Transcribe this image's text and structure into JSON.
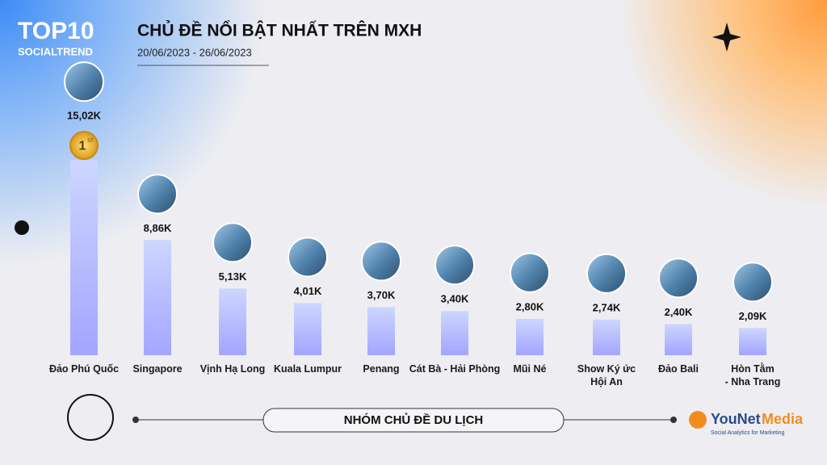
{
  "header": {
    "logo_top": "TOP10",
    "logo_bottom": "SOCIALTREND"
  },
  "rank_badge": {
    "number": "1",
    "suffix": "ST"
  },
  "footer": {
    "group": "NHÓM CHỦ ĐỀ DU LỊCH",
    "brand_a": "YouNet",
    "brand_b": "Media",
    "tagline": "Social Analytics for Marketing"
  },
  "chart_data": {
    "type": "bar",
    "title": "CHỦ ĐỀ NỔI BẬT NHẤT TRÊN MXH",
    "subtitle": "20/06/2023 - 26/06/2023",
    "categories": [
      "Đảo Phú Quốc",
      "Singapore",
      "Vịnh Hạ Long",
      "Kuala Lumpur",
      "Penang",
      "Cát Bà - Hải Phòng",
      "Mũi Né",
      "Show Ký ức\nHội An",
      "Đảo Bali",
      "Hòn Tằm\n- Nha Trang"
    ],
    "values": [
      15.02,
      8.86,
      5.13,
      4.01,
      3.7,
      3.4,
      2.8,
      2.74,
      2.4,
      2.09
    ],
    "value_labels": [
      "15,02K",
      "8,86K",
      "5,13K",
      "4,01K",
      "3,70K",
      "3,40K",
      "2,80K",
      "2,74K",
      "2,40K",
      "2,09K"
    ],
    "color": "#a9abff"
  }
}
